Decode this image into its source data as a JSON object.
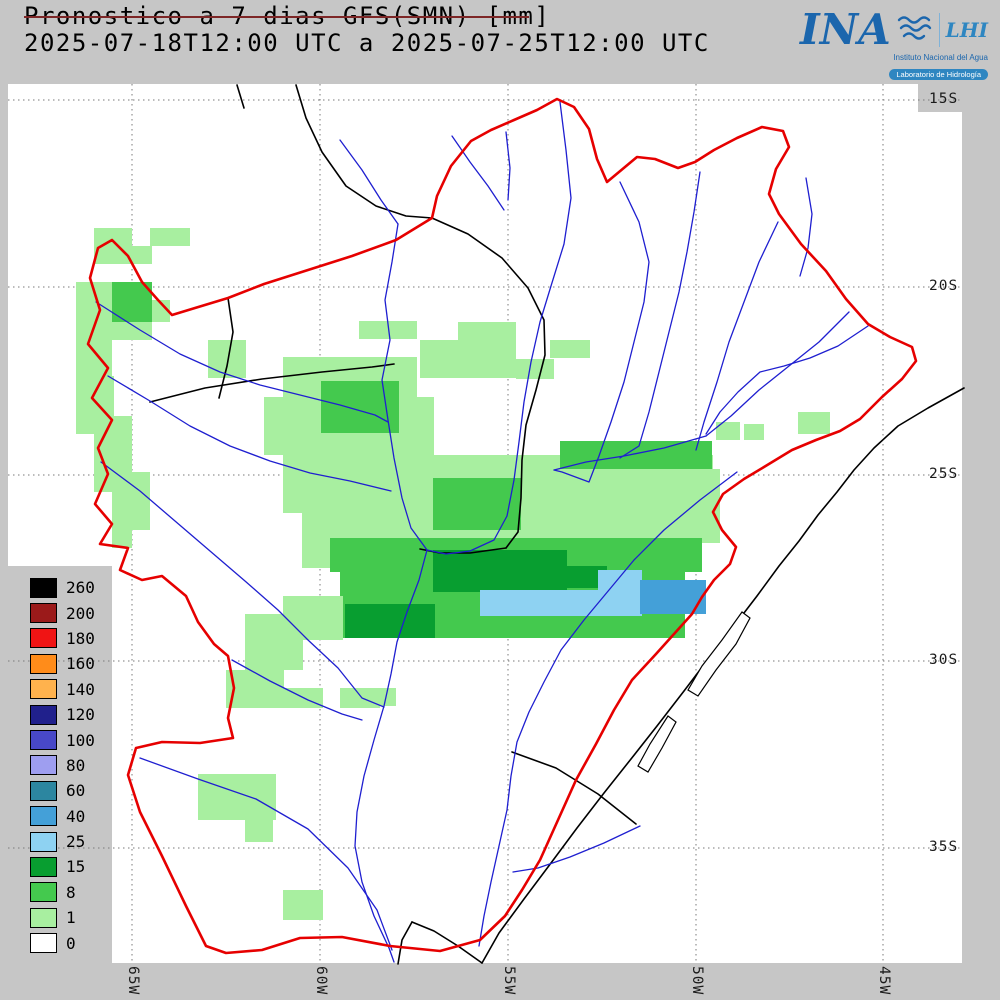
{
  "header": {
    "title_line1": "Pronostico a 7 dias GFS(SMN) [mm]",
    "title_line2": "2025-07-18T12:00 UTC a 2025-07-25T12:00 UTC"
  },
  "logo": {
    "acronym": "INA",
    "lab": "LHI",
    "subtitle1": "Instituto Nacional del Agua",
    "subtitle2": "Laboratorio de Hidrología"
  },
  "legend": {
    "entries": [
      {
        "label": "260",
        "color": "#000000"
      },
      {
        "label": "200",
        "color": "#9b1a1a"
      },
      {
        "label": "180",
        "color": "#f01414"
      },
      {
        "label": "160",
        "color": "#ff8c1a"
      },
      {
        "label": "140",
        "color": "#ffb24d"
      },
      {
        "label": "120",
        "color": "#20208c"
      },
      {
        "label": "100",
        "color": "#4848c8"
      },
      {
        "label": "80",
        "color": "#9e9ef0"
      },
      {
        "label": "60",
        "color": "#2c86a0"
      },
      {
        "label": "40",
        "color": "#44a0d8"
      },
      {
        "label": "25",
        "color": "#8ed2f2"
      },
      {
        "label": "15",
        "color": "#089e30"
      },
      {
        "label": "8",
        "color": "#44c94e"
      },
      {
        "label": "1",
        "color": "#a8efa0"
      },
      {
        "label": "0",
        "color": "#ffffff"
      }
    ]
  },
  "axes": {
    "latitude": [
      "15S",
      "20S",
      "25S",
      "30S",
      "35S"
    ],
    "longitude": [
      "65W",
      "60W",
      "55W",
      "50W",
      "45W"
    ]
  }
}
